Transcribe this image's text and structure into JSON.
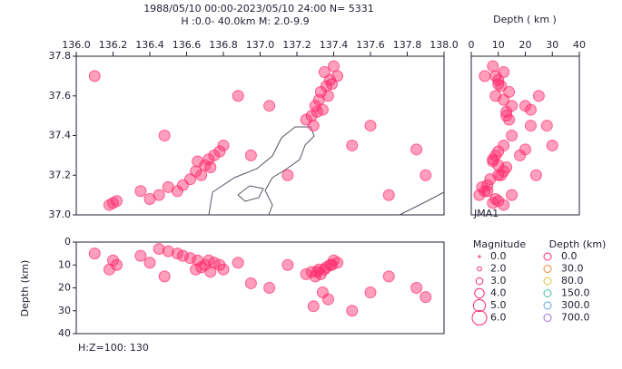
{
  "header": {
    "period": "1988/05/10 00:00-2023/05/10 24:00  N= 5331",
    "range": "H :0.0- 40.0km  M: 2.0-9.9"
  },
  "map": {
    "xlim": [
      136.0,
      138.0
    ],
    "ylim": [
      37.0,
      37.8
    ],
    "xticks": [
      {
        "value": 136.0,
        "label": "136.0"
      },
      136.2,
      136.4,
      136.6,
      136.8,
      {
        "value": 137.0,
        "label": "137.0"
      },
      137.2,
      137.4,
      137.6,
      137.8,
      {
        "value": 138.0,
        "label": "138.0"
      }
    ],
    "yticks": [
      {
        "value": 37.0,
        "label": "37.0"
      },
      37.2,
      37.4,
      37.6,
      37.8
    ]
  },
  "depth_panel": {
    "title": "Depth ( km )",
    "xlim": [
      0,
      40
    ],
    "xticks": [
      0,
      10,
      20,
      30,
      40
    ],
    "label": "JMA1"
  },
  "section_panel": {
    "ylabel": "Depth (km)",
    "ylim": [
      0,
      40
    ],
    "yticks": [
      0,
      10,
      20,
      30,
      40
    ]
  },
  "events": {
    "color": "#ff2a6d",
    "lon": [
      137.35,
      137.38,
      137.33,
      137.4,
      137.3,
      137.28,
      137.36,
      137.42,
      137.25,
      137.32,
      137.37,
      137.34,
      137.29,
      137.39,
      137.31,
      136.7,
      136.72,
      136.65,
      136.75,
      136.68,
      136.62,
      136.78,
      136.73,
      136.66,
      136.58,
      136.55,
      136.8,
      136.5,
      136.45,
      136.4,
      136.2,
      136.22,
      136.18,
      136.35,
      136.48,
      137.05,
      136.95,
      137.6,
      137.85,
      137.9,
      136.1,
      137.7,
      137.15,
      136.88,
      137.5
    ],
    "lat": [
      37.72,
      37.68,
      37.62,
      37.75,
      37.55,
      37.5,
      37.65,
      37.7,
      37.48,
      37.58,
      37.6,
      37.53,
      37.45,
      37.66,
      37.52,
      37.25,
      37.28,
      37.22,
      37.3,
      37.2,
      37.18,
      37.32,
      37.24,
      37.27,
      37.15,
      37.12,
      37.35,
      37.14,
      37.1,
      37.08,
      37.06,
      37.07,
      37.05,
      37.12,
      37.4,
      37.55,
      37.3,
      37.45,
      37.33,
      37.2,
      37.7,
      37.1,
      37.2,
      37.6,
      37.35
    ],
    "depth": [
      12,
      10,
      14,
      8,
      15,
      13,
      11,
      9,
      14,
      12,
      25,
      22,
      28,
      10,
      13,
      10,
      8,
      12,
      9,
      11,
      7,
      10,
      13,
      8,
      6,
      5,
      12,
      4,
      3,
      9,
      8,
      10,
      12,
      6,
      15,
      20,
      18,
      22,
      20,
      24,
      5,
      15,
      10,
      9,
      30
    ]
  },
  "legend": {
    "magnitude_title": "Magnitude",
    "magnitudes": [
      "0.0",
      "2.0",
      "3.0",
      "4.0",
      "5.0",
      "6.0"
    ],
    "depth_title": "Depth (km)",
    "depths": [
      "0.0",
      "30.0",
      "80.0",
      "150.0",
      "300.0",
      "700.0"
    ],
    "depth_colors": [
      "#ff2a6d",
      "#f08a3c",
      "#d8c040",
      "#40c0a0",
      "#60a0e0",
      "#a070e0"
    ]
  },
  "scale_note": "H:Z=100: 130"
}
